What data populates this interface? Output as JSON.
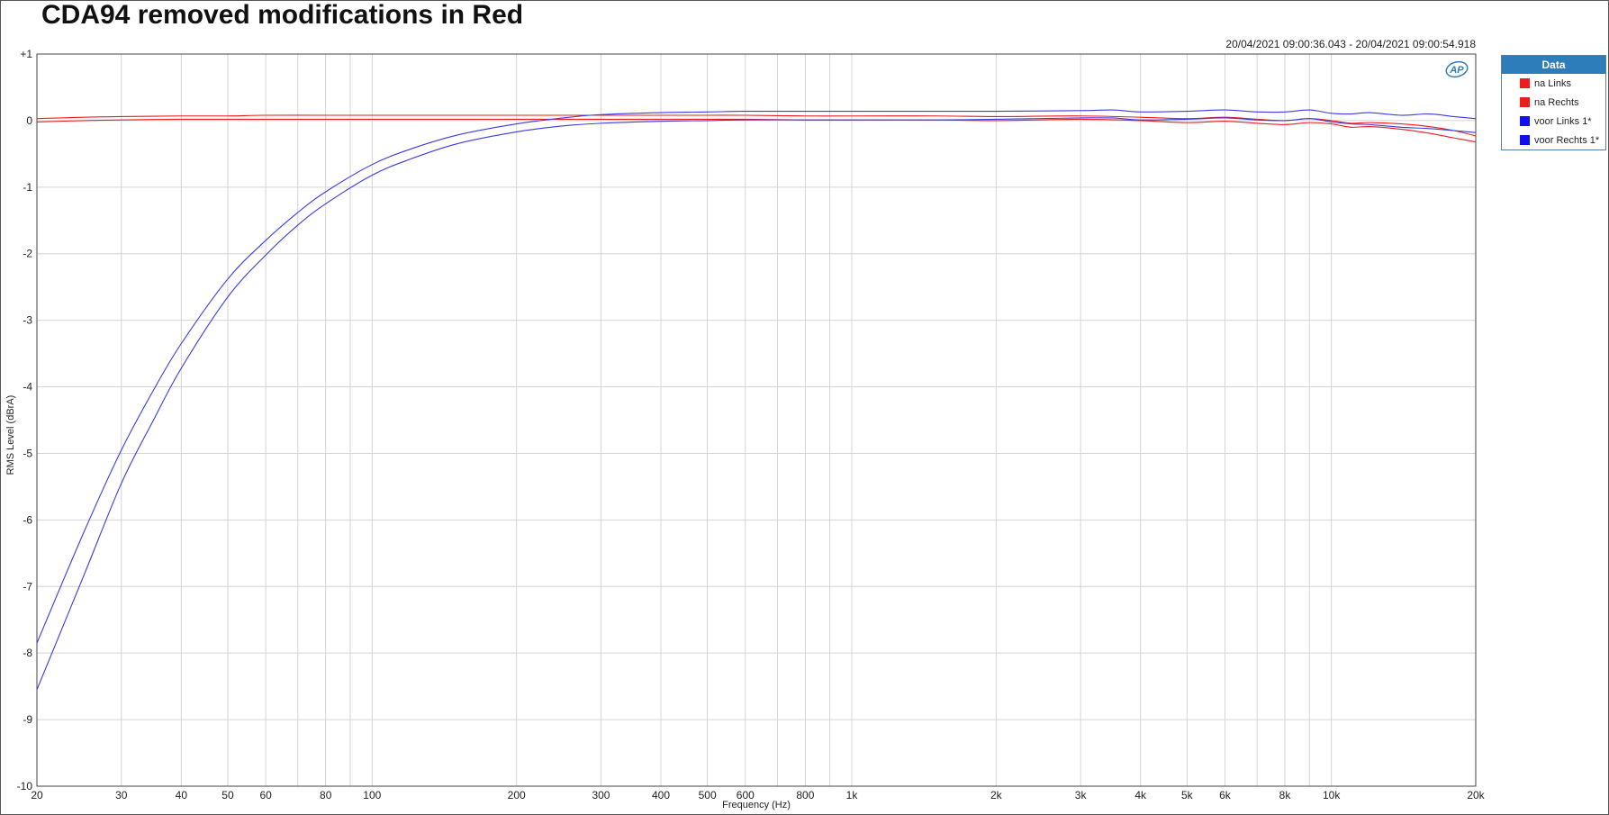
{
  "title": "CDA94 removed modifications in Red",
  "timestamp": "20/04/2021 09:00:36.043 - 20/04/2021 09:00:54.918",
  "logo": "AP",
  "legend": {
    "title": "Data",
    "items": [
      {
        "label": "na Links",
        "color": "#ee1c1c"
      },
      {
        "label": "na Rechts",
        "color": "#ee1c1c"
      },
      {
        "label": "voor Links  1*",
        "color": "#1010ee"
      },
      {
        "label": "voor Rechts  1*",
        "color": "#1010ee"
      }
    ]
  },
  "chart_data": {
    "type": "line",
    "xlabel": "Frequency (Hz)",
    "ylabel": "RMS Level (dBrA)",
    "x_scale": "log",
    "xlim": [
      20,
      20000
    ],
    "ylim": [
      -10,
      1
    ],
    "grid": true,
    "legend_position": "top-right outside",
    "x_ticks": [
      {
        "value": 20,
        "label": "20"
      },
      {
        "value": 30,
        "label": "30"
      },
      {
        "value": 40,
        "label": "40"
      },
      {
        "value": 50,
        "label": "50"
      },
      {
        "value": 60,
        "label": "60"
      },
      {
        "value": 80,
        "label": "80"
      },
      {
        "value": 100,
        "label": "100"
      },
      {
        "value": 200,
        "label": "200"
      },
      {
        "value": 300,
        "label": "300"
      },
      {
        "value": 400,
        "label": "400"
      },
      {
        "value": 500,
        "label": "500"
      },
      {
        "value": 600,
        "label": "600"
      },
      {
        "value": 800,
        "label": "800"
      },
      {
        "value": 1000,
        "label": "1k"
      },
      {
        "value": 2000,
        "label": "2k"
      },
      {
        "value": 3000,
        "label": "3k"
      },
      {
        "value": 4000,
        "label": "4k"
      },
      {
        "value": 5000,
        "label": "5k"
      },
      {
        "value": 6000,
        "label": "6k"
      },
      {
        "value": 8000,
        "label": "8k"
      },
      {
        "value": 10000,
        "label": "10k"
      },
      {
        "value": 20000,
        "label": "20k"
      }
    ],
    "y_ticks": [
      {
        "value": 1,
        "label": "+1"
      },
      {
        "value": 0,
        "label": "0"
      },
      {
        "value": -1,
        "label": "-1"
      },
      {
        "value": -2,
        "label": "-2"
      },
      {
        "value": -3,
        "label": "-3"
      },
      {
        "value": -4,
        "label": "-4"
      },
      {
        "value": -5,
        "label": "-5"
      },
      {
        "value": -6,
        "label": "-6"
      },
      {
        "value": -7,
        "label": "-7"
      },
      {
        "value": -8,
        "label": "-8"
      },
      {
        "value": -9,
        "label": "-9"
      },
      {
        "value": -10,
        "label": "-10"
      }
    ],
    "series": [
      {
        "name": "na Links",
        "color": "#ee1c1c",
        "x": [
          20,
          25,
          30,
          40,
          50,
          60,
          80,
          100,
          150,
          200,
          300,
          400,
          500,
          600,
          800,
          1000,
          1500,
          2000,
          3000,
          4000,
          5000,
          6000,
          7000,
          8000,
          9000,
          10000,
          11000,
          12000,
          14000,
          16000,
          18000,
          20000
        ],
        "y": [
          0.03,
          0.05,
          0.06,
          0.07,
          0.07,
          0.08,
          0.08,
          0.08,
          0.08,
          0.08,
          0.08,
          0.08,
          0.08,
          0.08,
          0.07,
          0.07,
          0.07,
          0.06,
          0.07,
          0.05,
          0.03,
          0.05,
          0.02,
          0.0,
          0.03,
          0.0,
          -0.04,
          -0.03,
          -0.05,
          -0.09,
          -0.15,
          -0.23
        ]
      },
      {
        "name": "na Rechts",
        "color": "#ee1c1c",
        "x": [
          20,
          25,
          30,
          40,
          50,
          60,
          80,
          100,
          150,
          200,
          300,
          400,
          500,
          600,
          800,
          1000,
          1500,
          2000,
          3000,
          4000,
          5000,
          6000,
          7000,
          8000,
          9000,
          10000,
          11000,
          12000,
          14000,
          16000,
          18000,
          20000
        ],
        "y": [
          -0.02,
          0.0,
          0.01,
          0.02,
          0.02,
          0.02,
          0.02,
          0.02,
          0.02,
          0.02,
          0.02,
          0.02,
          0.02,
          0.02,
          0.01,
          0.01,
          0.01,
          0.0,
          0.02,
          0.0,
          -0.03,
          -0.01,
          -0.04,
          -0.06,
          -0.03,
          -0.05,
          -0.1,
          -0.09,
          -0.13,
          -0.19,
          -0.26,
          -0.32
        ]
      },
      {
        "name": "voor Links  1*",
        "color": "#3a3ae6",
        "x": [
          20,
          25,
          30,
          35,
          40,
          50,
          60,
          70,
          80,
          100,
          120,
          150,
          200,
          250,
          300,
          400,
          500,
          600,
          800,
          1000,
          1500,
          2000,
          3000,
          3500,
          4000,
          5000,
          6000,
          7000,
          8000,
          9000,
          10000,
          11000,
          12000,
          14000,
          16000,
          18000,
          20000
        ],
        "y": [
          -7.85,
          -6.2,
          -4.95,
          -4.05,
          -3.35,
          -2.38,
          -1.8,
          -1.38,
          -1.07,
          -0.66,
          -0.43,
          -0.22,
          -0.05,
          0.04,
          0.09,
          0.12,
          0.13,
          0.14,
          0.14,
          0.14,
          0.14,
          0.14,
          0.15,
          0.16,
          0.13,
          0.14,
          0.16,
          0.13,
          0.13,
          0.16,
          0.11,
          0.1,
          0.12,
          0.08,
          0.1,
          0.06,
          0.03
        ]
      },
      {
        "name": "voor Rechts  1*",
        "color": "#3a3ae6",
        "x": [
          20,
          25,
          30,
          35,
          40,
          50,
          60,
          70,
          80,
          100,
          120,
          150,
          200,
          250,
          300,
          400,
          500,
          600,
          800,
          1000,
          1500,
          2000,
          3000,
          3500,
          4000,
          5000,
          6000,
          7000,
          8000,
          9000,
          10000,
          11000,
          12000,
          14000,
          16000,
          18000,
          20000
        ],
        "y": [
          -8.55,
          -6.85,
          -5.45,
          -4.5,
          -3.72,
          -2.65,
          -2.02,
          -1.57,
          -1.25,
          -0.82,
          -0.58,
          -0.35,
          -0.17,
          -0.08,
          -0.04,
          -0.01,
          0.0,
          0.01,
          0.01,
          0.01,
          0.01,
          0.02,
          0.04,
          0.04,
          0.01,
          0.02,
          0.04,
          0.01,
          0.0,
          0.03,
          -0.02,
          -0.05,
          -0.06,
          -0.1,
          -0.12,
          -0.15,
          -0.18
        ]
      }
    ]
  }
}
